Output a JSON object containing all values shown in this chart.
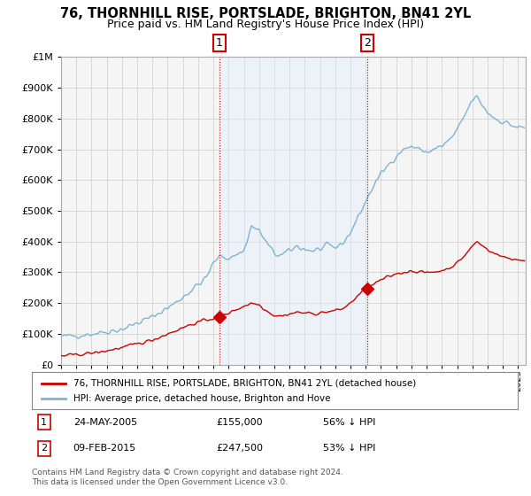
{
  "title": "76, THORNHILL RISE, PORTSLADE, BRIGHTON, BN41 2YL",
  "subtitle": "Price paid vs. HM Land Registry's House Price Index (HPI)",
  "legend_label_red": "76, THORNHILL RISE, PORTSLADE, BRIGHTON, BN41 2YL (detached house)",
  "legend_label_blue": "HPI: Average price, detached house, Brighton and Hove",
  "footer": "Contains HM Land Registry data © Crown copyright and database right 2024.\nThis data is licensed under the Open Government Licence v3.0.",
  "sale1_date": "24-MAY-2005",
  "sale1_price": 155000,
  "sale1_label": "56% ↓ HPI",
  "sale2_date": "09-FEB-2015",
  "sale2_price": 247500,
  "sale2_label": "53% ↓ HPI",
  "sale1_x": 2005.38,
  "sale2_x": 2015.1,
  "ylim": [
    0,
    1000000
  ],
  "xlim": [
    1995,
    2025.5
  ],
  "background_color": "#ffffff",
  "plot_bg_color": "#f5f5f5",
  "shade_color": "#ddeeff",
  "grid_color": "#cccccc",
  "red_color": "#cc0000",
  "blue_color": "#7fb3d3",
  "dashed_color": "#cc0000"
}
